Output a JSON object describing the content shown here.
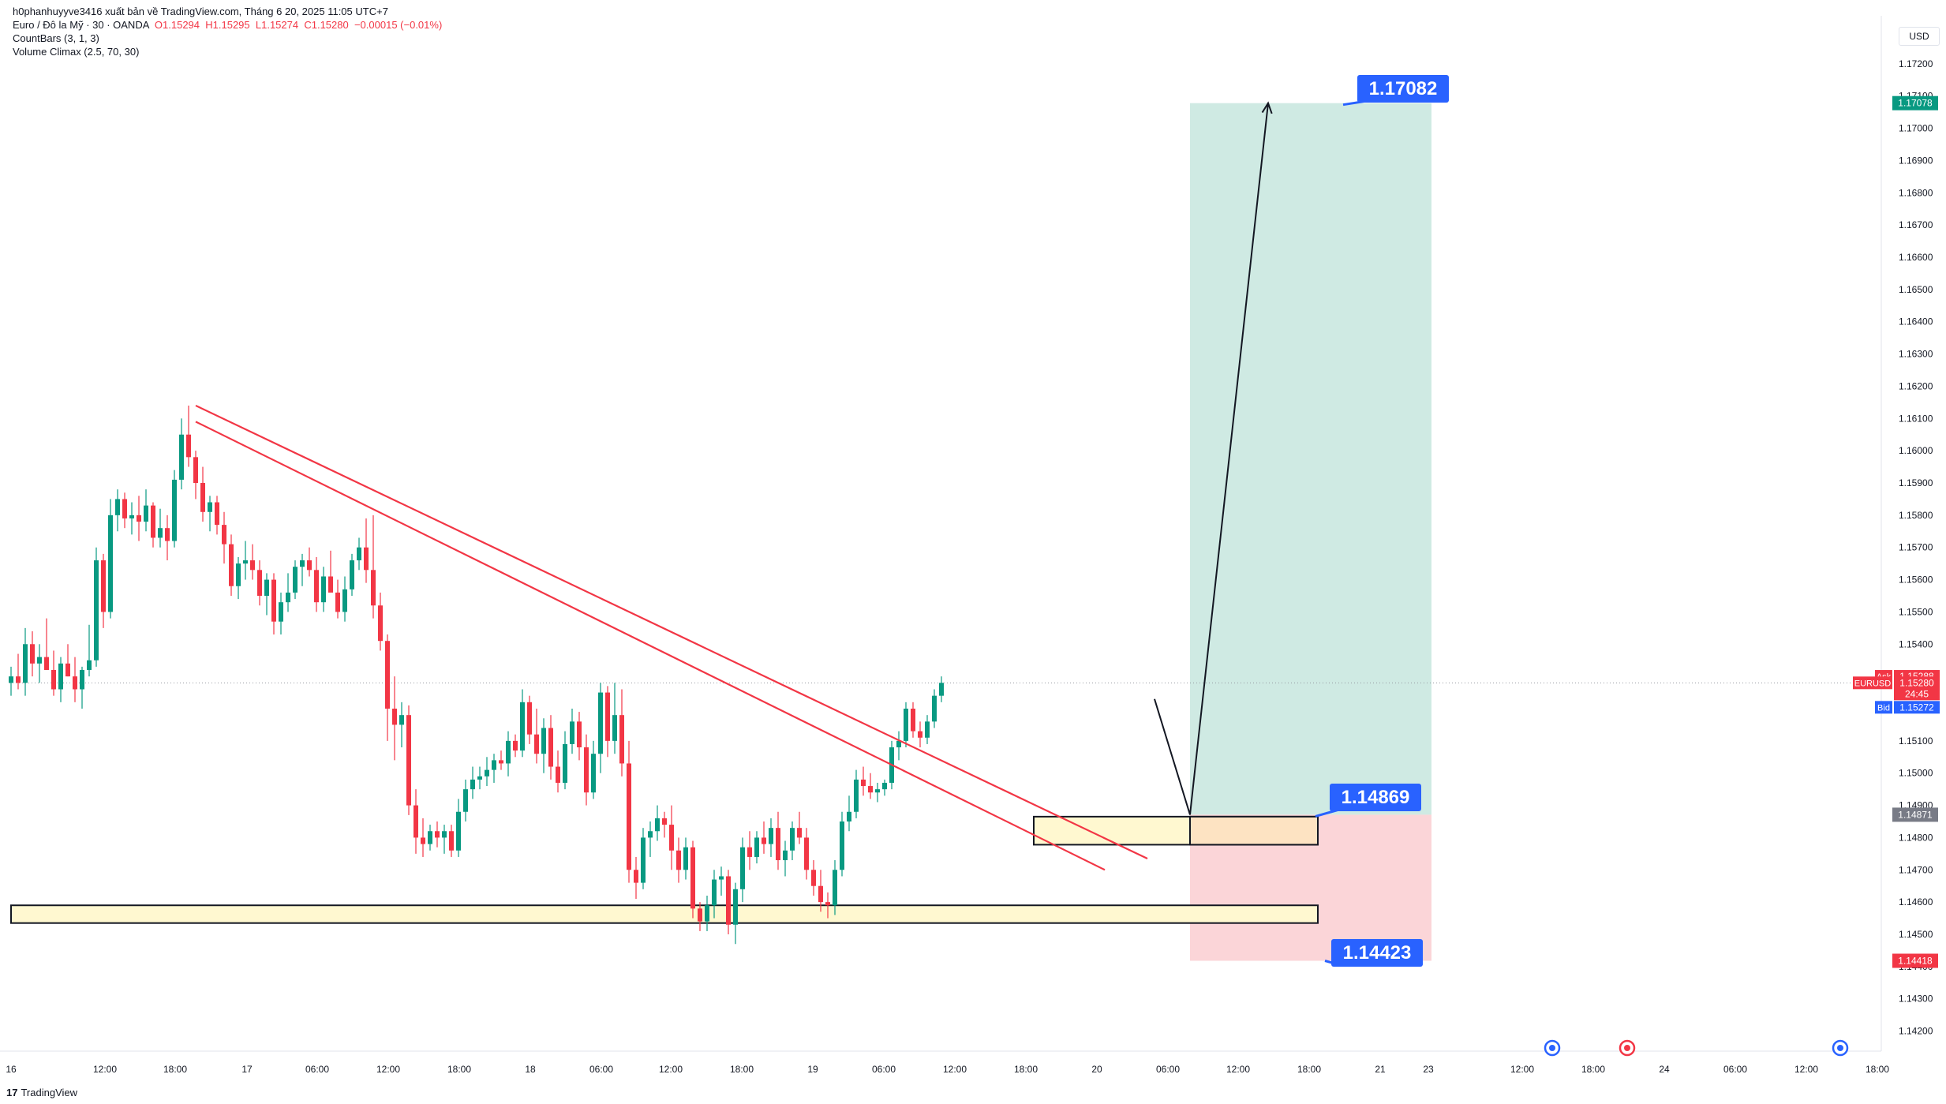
{
  "header": {
    "publisher": "h0phanhuyyve3416 xuất bản về TradingView.com, Tháng 6 20, 2025 11:05 UTC+7",
    "symbol": "Euro / Đô la Mỹ · 30 · OANDA",
    "open": "O1.15294",
    "high": "H1.15295",
    "low": "L1.15274",
    "close": "C1.15280",
    "change": "−0.00015 (−0.01%)",
    "indicator1": "CountBars (3, 1, 3)",
    "indicator2": "Volume Climax (2.5, 70, 30)"
  },
  "currency": "USD",
  "footer": {
    "logo": "17",
    "brand": "TradingView"
  },
  "colors": {
    "up": "#089981",
    "down": "#f23645",
    "trend": "#f23645",
    "target_zone": "#cfeae3",
    "stop_zone": "#fbd5d8",
    "entry_zone": "#fde3c2",
    "demand_zone": "#fff8d0",
    "callout": "#2962ff"
  },
  "chart_data": {
    "type": "candlestick",
    "symbol": "EURUSD",
    "timeframe": "30",
    "ylim": [
      1.1415,
      1.173
    ],
    "y_ticks": [
      "1.17200",
      "1.17100",
      "1.17000",
      "1.16900",
      "1.16800",
      "1.16700",
      "1.16600",
      "1.16500",
      "1.16400",
      "1.16300",
      "1.16200",
      "1.16100",
      "1.16000",
      "1.15900",
      "1.15800",
      "1.15700",
      "1.15600",
      "1.15500",
      "1.15400",
      "1.15300",
      "1.15200",
      "1.15100",
      "1.15000",
      "1.14900",
      "1.14800",
      "1.14700",
      "1.14600",
      "1.14500",
      "1.14400",
      "1.14300",
      "1.14200"
    ],
    "x_ticks": [
      "16",
      "12:00",
      "18:00",
      "17",
      "06:00",
      "12:00",
      "18:00",
      "18",
      "06:00",
      "12:00",
      "18:00",
      "19",
      "06:00",
      "12:00",
      "18:00",
      "20",
      "06:00",
      "12:00",
      "18:00",
      "21",
      "23",
      "12:00",
      "18:00",
      "24",
      "06:00",
      "12:00",
      "18:00"
    ],
    "ohlc": [
      [
        1.1528,
        1.1533,
        1.1524,
        1.153
      ],
      [
        1.153,
        1.1537,
        1.1526,
        1.1528
      ],
      [
        1.1528,
        1.1545,
        1.1524,
        1.154
      ],
      [
        1.154,
        1.1544,
        1.153,
        1.1534
      ],
      [
        1.1534,
        1.154,
        1.1528,
        1.1536
      ],
      [
        1.1536,
        1.1548,
        1.1532,
        1.1532
      ],
      [
        1.1532,
        1.1538,
        1.1524,
        1.1526
      ],
      [
        1.1526,
        1.1536,
        1.1522,
        1.1534
      ],
      [
        1.1534,
        1.154,
        1.153,
        1.153
      ],
      [
        1.153,
        1.1536,
        1.1522,
        1.1526
      ],
      [
        1.1526,
        1.1533,
        1.152,
        1.1532
      ],
      [
        1.1532,
        1.1546,
        1.153,
        1.1535
      ],
      [
        1.1535,
        1.157,
        1.1533,
        1.1566
      ],
      [
        1.1566,
        1.1568,
        1.1545,
        1.155
      ],
      [
        1.155,
        1.1585,
        1.1548,
        1.158
      ],
      [
        1.158,
        1.1588,
        1.1575,
        1.1585
      ],
      [
        1.1585,
        1.1587,
        1.1576,
        1.1579
      ],
      [
        1.1579,
        1.1584,
        1.1574,
        1.158
      ],
      [
        1.158,
        1.1586,
        1.1572,
        1.1578
      ],
      [
        1.1578,
        1.1588,
        1.1575,
        1.1583
      ],
      [
        1.1583,
        1.1584,
        1.157,
        1.1573
      ],
      [
        1.1573,
        1.1582,
        1.157,
        1.1576
      ],
      [
        1.1576,
        1.158,
        1.1566,
        1.1572
      ],
      [
        1.1572,
        1.1594,
        1.157,
        1.1591
      ],
      [
        1.1591,
        1.161,
        1.1588,
        1.1605
      ],
      [
        1.1605,
        1.1614,
        1.1595,
        1.1598
      ],
      [
        1.1598,
        1.16,
        1.1585,
        1.159
      ],
      [
        1.159,
        1.1595,
        1.1578,
        1.1581
      ],
      [
        1.1581,
        1.1586,
        1.1575,
        1.1584
      ],
      [
        1.1584,
        1.1586,
        1.1574,
        1.1577
      ],
      [
        1.1577,
        1.1581,
        1.1565,
        1.1571
      ],
      [
        1.1571,
        1.1574,
        1.1555,
        1.1558
      ],
      [
        1.1558,
        1.1567,
        1.1554,
        1.1565
      ],
      [
        1.1565,
        1.1572,
        1.156,
        1.1566
      ],
      [
        1.1566,
        1.1571,
        1.156,
        1.1563
      ],
      [
        1.1563,
        1.1566,
        1.1552,
        1.1555
      ],
      [
        1.1555,
        1.1562,
        1.1549,
        1.156
      ],
      [
        1.156,
        1.1562,
        1.1543,
        1.1547
      ],
      [
        1.1547,
        1.1556,
        1.1543,
        1.1553
      ],
      [
        1.1553,
        1.1562,
        1.155,
        1.1556
      ],
      [
        1.1556,
        1.1566,
        1.1554,
        1.1564
      ],
      [
        1.1564,
        1.1568,
        1.1558,
        1.1566
      ],
      [
        1.1566,
        1.157,
        1.1561,
        1.1563
      ],
      [
        1.1563,
        1.1567,
        1.155,
        1.1553
      ],
      [
        1.1553,
        1.1564,
        1.155,
        1.1561
      ],
      [
        1.1561,
        1.1569,
        1.1557,
        1.1556
      ],
      [
        1.1556,
        1.156,
        1.1548,
        1.155
      ],
      [
        1.155,
        1.1561,
        1.1547,
        1.1557
      ],
      [
        1.1557,
        1.1568,
        1.1555,
        1.1566
      ],
      [
        1.1566,
        1.1573,
        1.1563,
        1.157
      ],
      [
        1.157,
        1.1579,
        1.1559,
        1.1563
      ],
      [
        1.1563,
        1.158,
        1.1548,
        1.1552
      ],
      [
        1.1552,
        1.1556,
        1.1538,
        1.1541
      ],
      [
        1.1541,
        1.1543,
        1.151,
        1.152
      ],
      [
        1.152,
        1.153,
        1.1504,
        1.1515
      ],
      [
        1.1515,
        1.1522,
        1.1508,
        1.1518
      ],
      [
        1.1518,
        1.1521,
        1.1487,
        1.149
      ],
      [
        1.149,
        1.1495,
        1.1475,
        1.148
      ],
      [
        1.148,
        1.1486,
        1.1474,
        1.1478
      ],
      [
        1.1478,
        1.1484,
        1.1476,
        1.1482
      ],
      [
        1.1482,
        1.1485,
        1.1477,
        1.148
      ],
      [
        1.148,
        1.1484,
        1.1475,
        1.1482
      ],
      [
        1.1482,
        1.1484,
        1.1474,
        1.1476
      ],
      [
        1.1476,
        1.1492,
        1.1474,
        1.1488
      ],
      [
        1.1488,
        1.1498,
        1.1485,
        1.1495
      ],
      [
        1.1495,
        1.1502,
        1.1492,
        1.1498
      ],
      [
        1.1498,
        1.1502,
        1.1495,
        1.1499
      ],
      [
        1.1499,
        1.1505,
        1.1496,
        1.1501
      ],
      [
        1.1501,
        1.1506,
        1.1497,
        1.1504
      ],
      [
        1.1504,
        1.1507,
        1.1501,
        1.1503
      ],
      [
        1.1503,
        1.1513,
        1.1499,
        1.151
      ],
      [
        1.151,
        1.1512,
        1.1505,
        1.1507
      ],
      [
        1.1507,
        1.1526,
        1.1505,
        1.1522
      ],
      [
        1.1522,
        1.1524,
        1.1509,
        1.1512
      ],
      [
        1.1512,
        1.152,
        1.1503,
        1.1506
      ],
      [
        1.1506,
        1.1517,
        1.15,
        1.1514
      ],
      [
        1.1514,
        1.1518,
        1.1498,
        1.1502
      ],
      [
        1.1502,
        1.1507,
        1.1494,
        1.1497
      ],
      [
        1.1497,
        1.1513,
        1.1495,
        1.1509
      ],
      [
        1.1509,
        1.152,
        1.1506,
        1.1516
      ],
      [
        1.1516,
        1.1519,
        1.1504,
        1.1508
      ],
      [
        1.1508,
        1.1512,
        1.149,
        1.1494
      ],
      [
        1.1494,
        1.151,
        1.1492,
        1.1506
      ],
      [
        1.1506,
        1.1528,
        1.15,
        1.1525
      ],
      [
        1.1525,
        1.1527,
        1.1505,
        1.151
      ],
      [
        1.151,
        1.1528,
        1.1506,
        1.1518
      ],
      [
        1.1518,
        1.1526,
        1.1499,
        1.1503
      ],
      [
        1.1503,
        1.151,
        1.1466,
        1.147
      ],
      [
        1.147,
        1.1474,
        1.1461,
        1.1466
      ],
      [
        1.1466,
        1.1483,
        1.1464,
        1.148
      ],
      [
        1.148,
        1.1485,
        1.1474,
        1.1482
      ],
      [
        1.1482,
        1.149,
        1.1479,
        1.1486
      ],
      [
        1.1486,
        1.1488,
        1.148,
        1.1484
      ],
      [
        1.1484,
        1.149,
        1.147,
        1.1476
      ],
      [
        1.1476,
        1.148,
        1.1466,
        1.147
      ],
      [
        1.147,
        1.148,
        1.1467,
        1.1477
      ],
      [
        1.1477,
        1.1479,
        1.1455,
        1.1458
      ],
      [
        1.1458,
        1.146,
        1.1451,
        1.1454
      ],
      [
        1.1454,
        1.1462,
        1.1451,
        1.1459
      ],
      [
        1.1459,
        1.147,
        1.1455,
        1.1467
      ],
      [
        1.1467,
        1.1471,
        1.1462,
        1.1468
      ],
      [
        1.1468,
        1.147,
        1.145,
        1.1453
      ],
      [
        1.1453,
        1.1466,
        1.1447,
        1.1464
      ],
      [
        1.1464,
        1.148,
        1.146,
        1.1477
      ],
      [
        1.1477,
        1.1482,
        1.147,
        1.1474
      ],
      [
        1.1474,
        1.1482,
        1.1472,
        1.148
      ],
      [
        1.148,
        1.1485,
        1.1475,
        1.1478
      ],
      [
        1.1478,
        1.1486,
        1.1474,
        1.1483
      ],
      [
        1.1483,
        1.1488,
        1.147,
        1.1473
      ],
      [
        1.1473,
        1.1479,
        1.1468,
        1.1476
      ],
      [
        1.1476,
        1.1485,
        1.1473,
        1.1483
      ],
      [
        1.1483,
        1.1488,
        1.1478,
        1.148
      ],
      [
        1.148,
        1.1483,
        1.1467,
        1.147
      ],
      [
        1.147,
        1.1473,
        1.1462,
        1.1465
      ],
      [
        1.1465,
        1.147,
        1.1457,
        1.146
      ],
      [
        1.146,
        1.1463,
        1.1455,
        1.1459
      ],
      [
        1.1459,
        1.1473,
        1.1456,
        1.147
      ],
      [
        1.147,
        1.1488,
        1.1468,
        1.1485
      ],
      [
        1.1485,
        1.1493,
        1.1482,
        1.1488
      ],
      [
        1.1488,
        1.1501,
        1.1486,
        1.1498
      ],
      [
        1.1498,
        1.1502,
        1.1493,
        1.1496
      ],
      [
        1.1496,
        1.15,
        1.1492,
        1.1494
      ],
      [
        1.1494,
        1.1497,
        1.1491,
        1.1495
      ],
      [
        1.1495,
        1.1498,
        1.1493,
        1.1497
      ],
      [
        1.1497,
        1.151,
        1.1495,
        1.1508
      ],
      [
        1.1508,
        1.1513,
        1.1504,
        1.151
      ],
      [
        1.151,
        1.1522,
        1.1508,
        1.152
      ],
      [
        1.152,
        1.1522,
        1.1511,
        1.1513
      ],
      [
        1.1513,
        1.1516,
        1.1508,
        1.1511
      ],
      [
        1.1511,
        1.1518,
        1.1509,
        1.1516
      ],
      [
        1.1516,
        1.1526,
        1.1514,
        1.1524
      ],
      [
        1.1524,
        1.153,
        1.1522,
        1.1528
      ]
    ],
    "lines": [
      {
        "type": "trendline",
        "from": {
          "bar": 26,
          "price": 1.1614
        },
        "to": {
          "bar": 160,
          "price": 1.14735
        }
      },
      {
        "type": "trendline",
        "from": {
          "bar": 26,
          "price": 1.1609
        },
        "to": {
          "bar": 154,
          "price": 1.147
        }
      }
    ],
    "zones": [
      {
        "type": "demand",
        "top": 1.14865,
        "bottom": 1.14778,
        "from_bar": 144,
        "to_bar": 184
      },
      {
        "type": "demand",
        "top": 1.1459,
        "bottom": 1.14535,
        "from_bar": 0,
        "to_bar": 184
      }
    ],
    "position": {
      "direction": "long",
      "entry": 1.14871,
      "target": 1.17078,
      "stop": 1.14418,
      "from_bar": 166,
      "to_bar": 200
    },
    "projection": [
      {
        "bar": 161,
        "price": 1.1523
      },
      {
        "bar": 166,
        "price": 1.14871
      },
      {
        "bar": 177,
        "price": 1.17078
      }
    ],
    "callouts": [
      "1.17082",
      "1.14869",
      "1.14423"
    ],
    "price_scale_labels": {
      "target": "1.17078",
      "entry": "1.14871",
      "stop": "1.14418",
      "ask_label": "Ask",
      "ask": "1.15288",
      "symbol_label": "EURUSD",
      "last": "1.15280",
      "countdown": "24:45",
      "bid_label": "Bid",
      "bid": "1.15272"
    },
    "last_price": 1.1528,
    "grid": false,
    "legend": "top-left"
  }
}
